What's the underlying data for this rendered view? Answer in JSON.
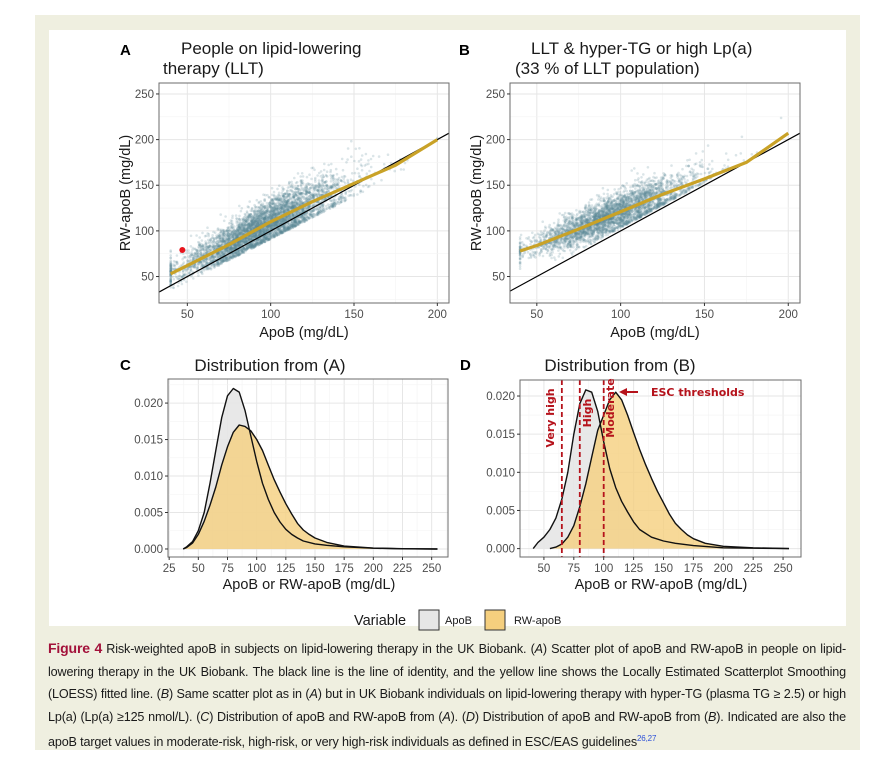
{
  "colors": {
    "page_bg": "#efefe0",
    "figure_bg": "#ffffff",
    "scatter": "#5b8795",
    "loess": "#c9a227",
    "identity": "#000000",
    "apob_fill": "#e6e6e6",
    "rwapob_fill": "#f5cf7e",
    "threshold": "#b5121b",
    "highlight_point": "#e8141c",
    "caption_label": "#a3113a"
  },
  "panels": {
    "A": {
      "letter": "A",
      "title_line1": "People on lipid-lowering",
      "title_line2": "therapy (LLT)",
      "xlabel": "ApoB (mg/dL)",
      "ylabel": "RW-apoB (mg/dL)"
    },
    "B": {
      "letter": "B",
      "title_line1": "LLT & hyper-TG or high Lp(a)",
      "title_line2": "(33 % of LLT population)",
      "xlabel": "ApoB (mg/dL)",
      "ylabel": "RW-apoB (mg/dL)"
    },
    "C": {
      "letter": "C",
      "title": "Distribution from (A)",
      "xlabel": "ApoB or RW-apoB (mg/dL)"
    },
    "D": {
      "letter": "D",
      "title": "Distribution from (B)",
      "xlabel": "ApoB or RW-apoB (mg/dL)",
      "threshold_labels": [
        "Very high",
        "High",
        "Moderate"
      ],
      "annotation": "ESC thresholds"
    }
  },
  "legend": {
    "title": "Variable",
    "items": [
      "ApoB",
      "RW-apoB"
    ]
  },
  "caption": {
    "label": "Figure 4",
    "segments": [
      " Risk-weighted apoB in subjects on lipid-lowering therapy in the UK Biobank. (",
      "A",
      ") Scatter plot of apoB and RW-apoB in people on lipid-lowering therapy in the UK Biobank. The black line is the line of identity, and the yellow line shows the Locally Estimated Scatterplot Smoothing (LOESS) fitted line. (",
      "B",
      ") Same scatter plot as in (",
      "A",
      ") but in UK Biobank individuals on lipid-lowering therapy with hyper-TG (plasma TG ≥ 2.5) or high Lp(a) (Lp(a) ≥125 nmol/L). (",
      "C",
      ") Distribution of apoB and RW-apoB from (",
      "A",
      "). (",
      "D",
      ") Distribution of apoB and RW-apoB from (",
      "B",
      "). Indicated are also the apoB target values in moderate-risk, high-risk, or very high-risk individuals as defined in ESC/EAS guidelines"
    ],
    "refs": "26,27"
  },
  "chart_data": [
    {
      "panel": "A",
      "type": "scatter",
      "title": "People on lipid-lowering therapy (LLT)",
      "xlabel": "ApoB (mg/dL)",
      "ylabel": "RW-apoB (mg/dL)",
      "xlim": [
        33,
        207
      ],
      "ylim": [
        21,
        262
      ],
      "xticks": [
        50,
        100,
        150,
        200
      ],
      "yticks": [
        50,
        100,
        150,
        200,
        250
      ],
      "grid": true,
      "identity_line": true,
      "loess": {
        "x": [
          40,
          50,
          75,
          100,
          125,
          150,
          175,
          200
        ],
        "y": [
          53,
          62,
          85,
          110,
          132,
          152,
          172,
          200
        ]
      },
      "highlight_point": {
        "x": 47,
        "y": 79
      }
    },
    {
      "panel": "B",
      "type": "scatter",
      "title": "LLT & hyper-TG or high Lp(a) (33 % of LLT population)",
      "xlabel": "ApoB (mg/dL)",
      "ylabel": "RW-apoB (mg/dL)",
      "xlim": [
        34,
        207
      ],
      "ylim": [
        21,
        262
      ],
      "xticks": [
        50,
        100,
        150,
        200
      ],
      "yticks": [
        50,
        100,
        150,
        200,
        250
      ],
      "grid": true,
      "identity_line": true,
      "loess": {
        "x": [
          40,
          50,
          75,
          100,
          125,
          150,
          175,
          200
        ],
        "y": [
          78,
          84,
          102,
          121,
          140,
          157,
          175,
          207
        ]
      }
    },
    {
      "panel": "C",
      "type": "area",
      "title": "Distribution from (A)",
      "xlabel": "ApoB or RW-apoB (mg/dL)",
      "xlim": [
        24,
        264
      ],
      "ylim": [
        -0.0011,
        0.0233
      ],
      "xticks": [
        25,
        50,
        75,
        100,
        125,
        150,
        175,
        200,
        225,
        250
      ],
      "yticks": [
        0,
        0.005,
        0.01,
        0.015,
        0.02
      ],
      "grid": true,
      "series": [
        {
          "name": "ApoB",
          "x": [
            37,
            40,
            45,
            50,
            55,
            60,
            65,
            70,
            75,
            80,
            85,
            90,
            95,
            100,
            105,
            110,
            115,
            120,
            125,
            130,
            135,
            140,
            150,
            160,
            175,
            200,
            225,
            255
          ],
          "y": [
            0,
            0.0003,
            0.001,
            0.0025,
            0.005,
            0.009,
            0.0135,
            0.018,
            0.021,
            0.022,
            0.0215,
            0.019,
            0.0155,
            0.012,
            0.009,
            0.0068,
            0.005,
            0.0037,
            0.0027,
            0.002,
            0.0015,
            0.0011,
            0.0007,
            0.0005,
            0.0003,
            0.0001,
            3e-05,
            0
          ]
        },
        {
          "name": "RW-apoB",
          "x": [
            37,
            40,
            45,
            50,
            55,
            60,
            65,
            70,
            75,
            80,
            85,
            90,
            95,
            100,
            105,
            110,
            115,
            120,
            125,
            130,
            135,
            140,
            145,
            150,
            160,
            175,
            200,
            225,
            255
          ],
          "y": [
            0,
            0.0002,
            0.0008,
            0.002,
            0.0038,
            0.006,
            0.0085,
            0.0115,
            0.014,
            0.016,
            0.017,
            0.0168,
            0.0162,
            0.015,
            0.0135,
            0.0115,
            0.0095,
            0.0078,
            0.0062,
            0.0048,
            0.0035,
            0.0026,
            0.002,
            0.0015,
            0.0009,
            0.0004,
            0.00012,
            4e-05,
            0
          ]
        }
      ]
    },
    {
      "panel": "D",
      "type": "area",
      "title": "Distribution from (B)",
      "xlabel": "ApoB or RW-apoB (mg/dL)",
      "xlim": [
        30,
        265
      ],
      "ylim": [
        -0.0011,
        0.0221
      ],
      "xticks": [
        50,
        75,
        100,
        125,
        150,
        175,
        200,
        225,
        250
      ],
      "yticks": [
        0,
        0.005,
        0.01,
        0.015,
        0.02
      ],
      "grid": true,
      "thresholds": [
        {
          "x": 65,
          "label": "Very high"
        },
        {
          "x": 80,
          "label": "High"
        },
        {
          "x": 100,
          "label": "Moderate"
        }
      ],
      "series": [
        {
          "name": "ApoB",
          "x": [
            41,
            45,
            50,
            55,
            60,
            65,
            70,
            75,
            80,
            85,
            90,
            95,
            100,
            105,
            110,
            115,
            120,
            125,
            130,
            140,
            150,
            160,
            175,
            200,
            255
          ],
          "y": [
            0,
            0.0008,
            0.0015,
            0.0025,
            0.004,
            0.0065,
            0.01,
            0.015,
            0.019,
            0.0208,
            0.0205,
            0.018,
            0.014,
            0.0105,
            0.008,
            0.0062,
            0.0048,
            0.0035,
            0.0025,
            0.0015,
            0.001,
            0.0007,
            0.0004,
            0.0001,
            0
          ]
        },
        {
          "name": "RW-apoB",
          "x": [
            55,
            60,
            65,
            70,
            75,
            80,
            85,
            90,
            95,
            100,
            105,
            110,
            115,
            120,
            125,
            130,
            135,
            140,
            145,
            150,
            155,
            160,
            165,
            170,
            175,
            185,
            200,
            225,
            255
          ],
          "y": [
            0,
            0.0002,
            0.0006,
            0.0015,
            0.003,
            0.0055,
            0.0085,
            0.012,
            0.0155,
            0.0175,
            0.0195,
            0.0205,
            0.0195,
            0.0175,
            0.0152,
            0.013,
            0.011,
            0.0092,
            0.0075,
            0.006,
            0.0045,
            0.0033,
            0.0025,
            0.0018,
            0.0013,
            0.0007,
            0.0003,
            0.0001,
            0
          ]
        }
      ]
    }
  ]
}
